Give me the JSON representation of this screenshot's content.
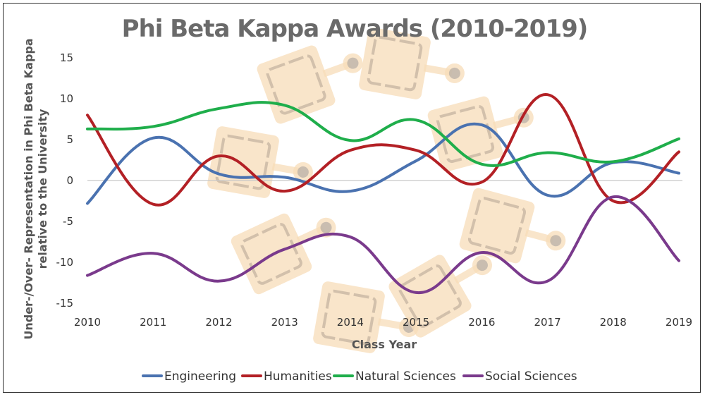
{
  "chart_data": {
    "type": "line",
    "title": "Phi Beta Kappa Awards (2010-2019)",
    "xlabel": "Class Year",
    "ylabel_line1": "Under-/Over- Representation in Phi Beta Kappa",
    "ylabel_line2": "relative to the University",
    "categories": [
      "2010",
      "2011",
      "2012",
      "2013",
      "2014",
      "2015",
      "2016",
      "2017",
      "2018",
      "2019"
    ],
    "ylim": [
      -15,
      15
    ],
    "yticks": [
      15,
      10,
      5,
      0,
      -5,
      -10,
      -15
    ],
    "grid": false,
    "legend_position": "bottom",
    "series": [
      {
        "name": "Engineering",
        "color": "#4a72b0",
        "values": [
          -2.8,
          5.2,
          0.8,
          0.4,
          -1.3,
          2.4,
          6.8,
          -1.8,
          2.2,
          0.9
        ]
      },
      {
        "name": "Humanities",
        "color": "#b32025",
        "values": [
          8.0,
          -2.9,
          3.0,
          -1.3,
          3.7,
          3.7,
          -0.2,
          10.5,
          -2.5,
          3.5
        ]
      },
      {
        "name": "Natural Sciences",
        "color": "#1fae4b",
        "values": [
          6.3,
          6.6,
          8.8,
          9.2,
          4.9,
          7.4,
          2.0,
          3.4,
          2.3,
          5.1
        ]
      },
      {
        "name": "Social Sciences",
        "color": "#7a3a8c",
        "values": [
          -11.6,
          -8.9,
          -12.3,
          -8.4,
          -6.9,
          -13.7,
          -8.8,
          -12.3,
          -2.0,
          -9.8
        ]
      }
    ]
  }
}
